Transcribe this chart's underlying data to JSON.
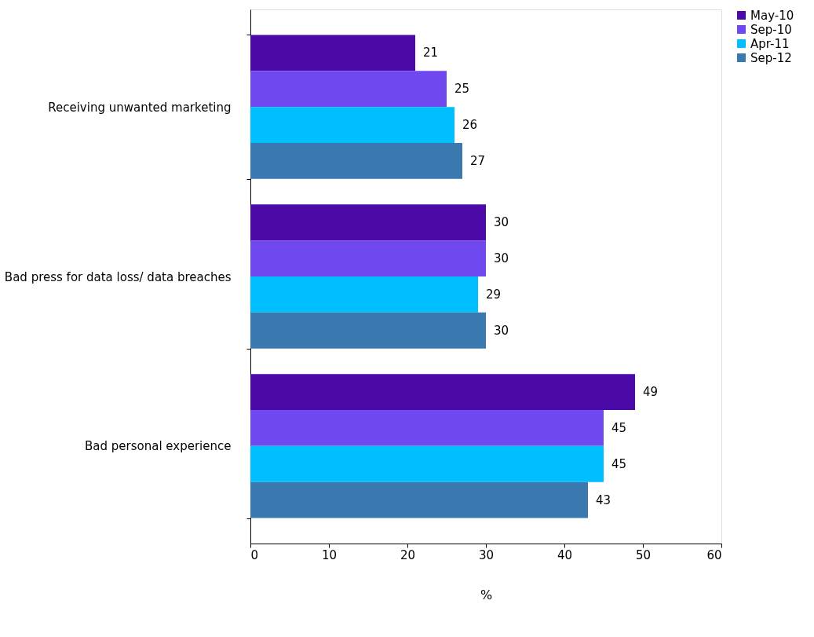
{
  "chart_data": {
    "type": "bar",
    "orientation": "horizontal",
    "xlabel": "%",
    "categories": [
      "Receiving unwanted marketing",
      "Bad press for data loss/ data breaches",
      "Bad personal experience"
    ],
    "series": [
      {
        "name": "May-10",
        "color": "#4b0aa8",
        "values": [
          21,
          30,
          49
        ]
      },
      {
        "name": "Sep-10",
        "color": "#7048f0",
        "values": [
          25,
          30,
          45
        ]
      },
      {
        "name": "Apr-11",
        "color": "#00bfff",
        "values": [
          26,
          29,
          45
        ]
      },
      {
        "name": "Sep-12",
        "color": "#3a78b0",
        "values": [
          27,
          30,
          43
        ]
      }
    ],
    "xlim": [
      0,
      60
    ],
    "xticks": [
      0,
      10,
      20,
      30,
      40,
      50,
      60
    ],
    "data_labels": true,
    "legend": "right",
    "grid": false
  }
}
